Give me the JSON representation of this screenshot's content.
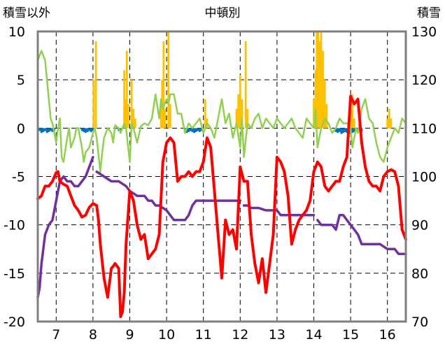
{
  "chart_data": {
    "type": "line",
    "title": "中頓別",
    "y_left_label": "積雪以外",
    "y_right_label": "積雪",
    "y_left_range": [
      -20,
      10
    ],
    "y_left_ticks": [
      "10",
      "5",
      "0",
      "-5",
      "-10",
      "-15",
      "-20"
    ],
    "y_right_range": [
      70,
      130
    ],
    "y_right_ticks": [
      "130",
      "120",
      "110",
      "100",
      "90",
      "80",
      "70"
    ],
    "x_range": [
      6.5,
      16.5
    ],
    "x_ticks": [
      "7",
      "8",
      "9",
      "10",
      "11",
      "12",
      "13",
      "14",
      "15",
      "16"
    ],
    "x_tick_values": [
      7,
      8,
      9,
      10,
      11,
      12,
      13,
      14,
      15,
      16
    ],
    "grid": "dashed",
    "colors": {
      "temperature": "#ff0000",
      "snow_depth": "#7030a0",
      "wind": "#92d050",
      "precip_positive": "#ffc000",
      "precip_negative": "#0070c0"
    },
    "series": [
      {
        "key": "temperature",
        "axis": "left",
        "x": [
          6.5,
          6.6,
          6.7,
          6.8,
          6.9,
          7.0,
          7.05,
          7.1,
          7.2,
          7.3,
          7.4,
          7.5,
          7.6,
          7.7,
          7.8,
          7.9,
          8.0,
          8.1,
          8.15,
          8.2,
          8.3,
          8.4,
          8.5,
          8.55,
          8.6,
          8.7,
          8.75,
          8.8,
          8.85,
          8.9,
          9.0,
          9.1,
          9.2,
          9.3,
          9.4,
          9.5,
          9.6,
          9.7,
          9.8,
          9.9,
          10.0,
          10.1,
          10.2,
          10.3,
          10.4,
          10.5,
          10.6,
          10.7,
          10.8,
          10.9,
          11.0,
          11.1,
          11.2,
          11.3,
          11.4,
          11.5,
          11.6,
          11.7,
          11.8,
          11.9,
          12.0,
          12.1,
          12.2,
          12.3,
          12.4,
          12.5,
          12.6,
          12.7,
          12.8,
          12.9,
          13.0,
          13.1,
          13.2,
          13.3,
          13.4,
          13.5,
          13.6,
          13.7,
          13.8,
          13.9,
          14.0,
          14.1,
          14.2,
          14.3,
          14.4,
          14.5,
          14.6,
          14.7,
          14.8,
          14.9,
          15.0,
          15.1,
          15.2,
          15.3,
          15.4,
          15.5,
          15.6,
          15.7,
          15.8,
          15.9,
          16.0,
          16.1,
          16.2,
          16.3,
          16.4,
          16.5
        ],
        "values": [
          -7.3,
          -7.0,
          -6.0,
          -6.0,
          -5.5,
          -4.6,
          -4.5,
          -5.5,
          -5.8,
          -6.0,
          -7.0,
          -8.0,
          -8.5,
          -9.2,
          -9.0,
          -8.2,
          -7.8,
          -8.0,
          -9.5,
          -12.0,
          -15.5,
          -17.5,
          -14.5,
          -14.3,
          -14.0,
          -14.5,
          -19.5,
          -19.0,
          -17.0,
          -12.0,
          -6.5,
          -7.5,
          -10.0,
          -11.5,
          -11.0,
          -13.5,
          -13.0,
          -12.5,
          -11.0,
          -3.5,
          -1.5,
          -1.0,
          -1.5,
          -5.5,
          -5.0,
          -5.0,
          -4.5,
          -5.0,
          -4.5,
          -4.5,
          -3.5,
          -1.0,
          -2.0,
          -6.5,
          -11.0,
          -15.5,
          -9.5,
          -11.0,
          -10.5,
          -12.5,
          -4.0,
          -5.5,
          -5.5,
          -11.0,
          -14.0,
          -16.0,
          -13.5,
          -17.0,
          -14.0,
          -11.0,
          -3.0,
          -3.5,
          -4.5,
          -7.0,
          -12.0,
          -10.5,
          -9.5,
          -9.0,
          -8.5,
          -7.5,
          -4.5,
          -3.5,
          -4.0,
          -6.0,
          -6.5,
          -6.0,
          -5.5,
          -5.5,
          -4.0,
          -3.0,
          3.3,
          2.5,
          3.0,
          -1.5,
          -4.0,
          -5.5,
          -6.0,
          -6.0,
          -6.5,
          -5.0,
          -4.5,
          -4.3,
          -4.5,
          -6.0,
          -10.5,
          -11.5
        ]
      },
      {
        "key": "snow_depth",
        "axis": "right",
        "segments": [
          {
            "x": [
              6.5,
              6.55,
              6.6,
              6.7,
              6.8,
              6.9,
              7.0,
              7.1,
              7.2,
              7.3,
              7.4,
              7.5,
              7.6,
              7.7,
              7.8,
              7.9,
              8.0
            ],
            "values": [
              75,
              77,
              82,
              88,
              90,
              91,
              95,
              99,
              100,
              99,
              99,
              98,
              98,
              99,
              100,
              102,
              104
            ]
          },
          {
            "x": [
              8.1,
              8.2,
              8.3,
              8.4,
              8.5,
              8.6,
              8.7,
              8.8,
              8.9,
              9.0,
              9.1,
              9.2,
              9.3,
              9.4,
              9.5,
              9.6,
              9.7,
              9.8,
              9.9,
              10.0,
              10.2,
              10.4,
              10.5,
              10.6,
              10.7,
              10.8,
              10.9,
              11.0,
              11.2,
              11.4,
              11.6,
              11.8,
              12.0
            ],
            "values": [
              101,
              100.5,
              100,
              99.5,
              99,
              99,
              99,
              98.5,
              98,
              97,
              96.5,
              96,
              96,
              96,
              95,
              95,
              94,
              94,
              93.5,
              93,
              91,
              91,
              91,
              92,
              94,
              95,
              95,
              95,
              95,
              95,
              95,
              95,
              95
            ]
          },
          {
            "x": [
              12.1,
              12.2,
              12.3,
              12.5,
              12.7,
              12.9,
              13.0,
              13.1,
              13.2,
              13.4,
              13.6,
              13.8,
              14.0
            ],
            "values": [
              94,
              94,
              93.5,
              93.5,
              93,
              93,
              93,
              92,
              92,
              92,
              92,
              92,
              92
            ]
          },
          {
            "x": [
              14.1,
              14.2,
              14.3,
              14.5,
              14.6,
              14.7,
              14.8,
              14.9,
              15.0,
              15.1,
              15.2,
              15.3,
              15.4,
              15.6,
              15.8,
              16.0,
              16.2,
              16.3,
              16.5
            ],
            "values": [
              91,
              90,
              90,
              90,
              89,
              92,
              92,
              91,
              90,
              89,
              88,
              86,
              86,
              86,
              86,
              85,
              85,
              84,
              84
            ]
          }
        ]
      },
      {
        "key": "wind",
        "axis": "left",
        "x": [
          6.5,
          6.55,
          6.6,
          6.7,
          6.75,
          6.8,
          6.85,
          6.9,
          7.0,
          7.05,
          7.1,
          7.15,
          7.2,
          7.3,
          7.35,
          7.4,
          7.5,
          7.55,
          7.6,
          7.7,
          7.75,
          7.8,
          7.9,
          8.0,
          8.05,
          8.1,
          8.2,
          8.25,
          8.3,
          8.4,
          8.5,
          8.55,
          8.6,
          8.7,
          8.75,
          8.8,
          8.85,
          8.9,
          9.0,
          9.05,
          9.1,
          9.2,
          9.3,
          9.4,
          9.5,
          9.6,
          9.7,
          9.8,
          9.85,
          9.9,
          10.0,
          10.05,
          10.1,
          10.2,
          10.3,
          10.4,
          10.5,
          10.6,
          10.7,
          10.8,
          10.9,
          11.0,
          11.1,
          11.2,
          11.3,
          11.4,
          11.5,
          11.6,
          11.7,
          11.8,
          11.9,
          12.0,
          12.05,
          12.1,
          12.2,
          12.3,
          12.4,
          12.5,
          12.6,
          12.7,
          12.8,
          12.9,
          13.0,
          13.1,
          13.2,
          13.3,
          13.4,
          13.5,
          13.6,
          13.7,
          13.8,
          13.9,
          14.0,
          14.05,
          14.1,
          14.2,
          14.3,
          14.4,
          14.5,
          14.6,
          14.7,
          14.8,
          14.9,
          15.0,
          15.05,
          15.1,
          15.15,
          15.2,
          15.3,
          15.4,
          15.5,
          15.6,
          15.7,
          15.8,
          15.9,
          16.0,
          16.1,
          16.2,
          16.3,
          16.4,
          16.5
        ],
        "values": [
          7.0,
          7.5,
          8.0,
          7.0,
          5.0,
          3.0,
          1.0,
          0.5,
          -1.5,
          0.0,
          1.0,
          -3.0,
          -3.5,
          -1.0,
          0.0,
          -2.0,
          -1.0,
          0.0,
          0.0,
          -2.0,
          -3.5,
          -2.5,
          -2.0,
          -0.5,
          0.0,
          -1.0,
          -4.5,
          -2.5,
          -1.0,
          0.0,
          -0.5,
          -1.5,
          0.3,
          0.0,
          -0.5,
          0.0,
          0.5,
          0.0,
          -3.5,
          0.5,
          0.0,
          -1.5,
          0.2,
          0.5,
          0.3,
          1.0,
          3.5,
          1.0,
          3.0,
          2.0,
          3.0,
          2.5,
          3.5,
          3.5,
          1.5,
          1.5,
          -0.5,
          0.5,
          0.0,
          0.5,
          1.0,
          -0.5,
          0.5,
          0.0,
          -1.0,
          1.0,
          3.0,
          0.5,
          1.5,
          -1.0,
          0.5,
          -2.0,
          1.0,
          -3.0,
          0.5,
          0.0,
          1.0,
          1.5,
          0.0,
          1.0,
          0.5,
          0.0,
          1.0,
          0.5,
          0.0,
          0.5,
          1.0,
          0.0,
          -0.5,
          -1.0,
          1.0,
          0.5,
          0.0,
          2.0,
          -2.0,
          0.0,
          1.0,
          0.5,
          -0.5,
          0.0,
          1.0,
          0.5,
          0.5,
          0.0,
          -2.0,
          -1.0,
          0.0,
          -0.5,
          2.0,
          3.0,
          1.0,
          0.5,
          -1.5,
          -3.0,
          -3.5,
          -2.0,
          -1.0,
          0.0,
          -0.5,
          1.0,
          0.5
        ]
      },
      {
        "key": "precip_positive",
        "axis": "left",
        "style": "bars",
        "x": [
          8.02,
          8.08,
          8.85,
          8.88,
          8.92,
          8.96,
          9.05,
          9.1,
          9.15,
          9.85,
          9.88,
          9.92,
          9.96,
          10.05,
          10.1,
          11.05,
          11.1,
          11.9,
          11.95,
          12.0,
          12.05,
          12.15,
          12.2,
          14.0,
          14.05,
          14.08,
          14.12,
          14.15,
          14.2,
          14.25,
          14.3,
          14.35,
          15.0,
          15.05,
          15.1,
          16.0,
          16.05,
          16.1
        ],
        "values": [
          5.0,
          9.0,
          6.0,
          3.0,
          8.0,
          2.5,
          5.0,
          2.0,
          1.0,
          3.0,
          5.0,
          9.0,
          2.0,
          10.0,
          2.5,
          3.0,
          1.0,
          2.0,
          3.5,
          5.5,
          3.0,
          9.0,
          2.0,
          3.0,
          6.0,
          10.0,
          10.0,
          9.0,
          10.0,
          8.0,
          5.0,
          2.5,
          2.0,
          3.5,
          1.0,
          1.0,
          2.0,
          1.0
        ]
      },
      {
        "key": "precip_negative",
        "axis": "left",
        "style": "bars",
        "x": [
          6.55,
          6.6,
          6.65,
          6.7,
          6.75,
          6.8,
          6.85,
          6.9,
          6.95,
          7.7,
          7.75,
          7.8,
          7.85,
          7.9,
          7.95,
          8.0,
          8.7,
          8.75,
          10.5,
          10.55,
          10.6,
          10.65,
          10.7,
          10.75,
          10.8,
          10.85,
          10.9,
          10.95,
          14.6,
          14.65,
          14.7,
          14.75,
          14.8,
          14.85,
          14.9,
          14.95,
          15.0,
          15.05,
          15.1,
          15.15,
          15.2,
          15.25,
          15.3
        ],
        "values": [
          -0.3,
          -0.5,
          -0.4,
          -0.3,
          -0.5,
          -0.4,
          -0.3,
          -0.4,
          -0.3,
          -0.3,
          -0.4,
          -0.5,
          -0.4,
          -0.3,
          -0.4,
          -0.3,
          -0.3,
          -0.4,
          -0.3,
          -0.5,
          -0.4,
          -0.3,
          -0.4,
          -0.5,
          -0.4,
          -0.3,
          -0.4,
          -0.3,
          -0.4,
          -0.5,
          -0.4,
          -0.6,
          -0.5,
          -0.4,
          -0.5,
          -0.4,
          -0.6,
          -0.5,
          -0.4,
          -0.3,
          -0.4,
          -0.3,
          -0.4
        ]
      }
    ]
  }
}
